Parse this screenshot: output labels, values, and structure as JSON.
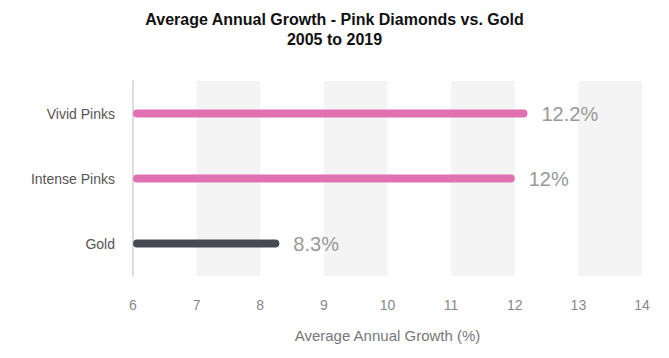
{
  "chart_data": {
    "type": "bar",
    "orientation": "horizontal",
    "title": "Average Annual Growth - Pink Diamonds vs. Gold",
    "subtitle": "2005 to 2019",
    "x_label": "Average Annual Growth (%)",
    "categories": [
      "Vivid Pinks",
      "Intense Pinks",
      "Gold"
    ],
    "values": [
      12.2,
      12,
      8.3
    ],
    "value_labels": [
      "12.2%",
      "12%",
      "8.3%"
    ],
    "colors": [
      "#e070b0",
      "#e070b0",
      "#474a54"
    ],
    "xlim": [
      6,
      14
    ],
    "xticks": [
      6,
      7,
      8,
      9,
      10,
      11,
      12,
      13,
      14
    ],
    "grid": true,
    "data_labels": true
  }
}
